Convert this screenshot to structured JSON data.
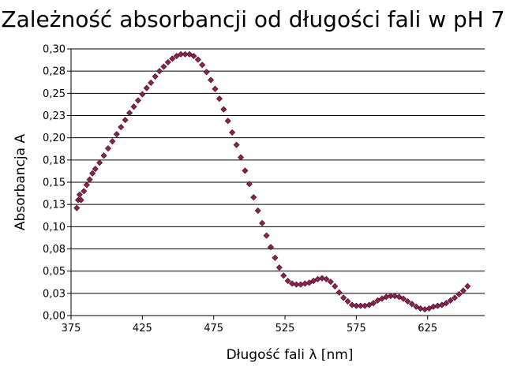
{
  "chart_data": {
    "type": "scatter",
    "title": "Zależność absorbancji od długości fali w pH 7",
    "xlabel": "Długość fali λ [nm]",
    "ylabel": "Absorbancja A",
    "xlim": [
      375,
      665
    ],
    "ylim": [
      0,
      0.3
    ],
    "x_ticks": [
      375,
      425,
      475,
      525,
      575,
      625
    ],
    "x_tick_labels": [
      "375",
      "425",
      "475",
      "525",
      "575",
      "625"
    ],
    "y_ticks": [
      0,
      0.025,
      0.05,
      0.075,
      0.1,
      0.125,
      0.15,
      0.175,
      0.2,
      0.225,
      0.25,
      0.275,
      0.3
    ],
    "y_tick_labels": [
      "0,00",
      "0,03",
      "0,05",
      "0,08",
      "0,10",
      "0,13",
      "0,15",
      "0,18",
      "0,20",
      "0,23",
      "0,25",
      "0,28",
      "0,30"
    ],
    "grid": "horizontal",
    "legend": "none",
    "marker": "diamond",
    "marker_color": "#8b2252",
    "marker_edge": "#3a0a1e",
    "series": [
      {
        "x": [
          379,
          380,
          381,
          382,
          384,
          386,
          388,
          390,
          392,
          395,
          398,
          401,
          404,
          407,
          410,
          413,
          416,
          419,
          422,
          425,
          428,
          431,
          434,
          437,
          440,
          443,
          446,
          449,
          452,
          455,
          458,
          461,
          464,
          467,
          470,
          473,
          476,
          479,
          482,
          485,
          488,
          491,
          494,
          497,
          500,
          503,
          506,
          509,
          512,
          515,
          518,
          521,
          524,
          527,
          530,
          533,
          536,
          539,
          542,
          545,
          548,
          551,
          554,
          557,
          560,
          563,
          566,
          569,
          572,
          575,
          578,
          581,
          584,
          587,
          590,
          593,
          596,
          599,
          602,
          605,
          608,
          611,
          614,
          617,
          620,
          623,
          626,
          629,
          632,
          635,
          638,
          641,
          644,
          647,
          650,
          653
        ],
        "y": [
          0.121,
          0.13,
          0.136,
          0.13,
          0.14,
          0.147,
          0.153,
          0.16,
          0.165,
          0.172,
          0.18,
          0.188,
          0.196,
          0.204,
          0.212,
          0.22,
          0.228,
          0.235,
          0.242,
          0.249,
          0.256,
          0.262,
          0.269,
          0.275,
          0.28,
          0.285,
          0.289,
          0.292,
          0.294,
          0.294,
          0.294,
          0.292,
          0.288,
          0.282,
          0.274,
          0.265,
          0.255,
          0.244,
          0.232,
          0.219,
          0.206,
          0.192,
          0.178,
          0.163,
          0.148,
          0.133,
          0.118,
          0.104,
          0.09,
          0.077,
          0.065,
          0.054,
          0.045,
          0.039,
          0.036,
          0.035,
          0.035,
          0.036,
          0.037,
          0.039,
          0.041,
          0.042,
          0.041,
          0.038,
          0.033,
          0.026,
          0.02,
          0.016,
          0.012,
          0.011,
          0.011,
          0.011,
          0.012,
          0.014,
          0.017,
          0.019,
          0.021,
          0.022,
          0.022,
          0.021,
          0.019,
          0.016,
          0.013,
          0.01,
          0.008,
          0.007,
          0.008,
          0.01,
          0.011,
          0.012,
          0.014,
          0.017,
          0.02,
          0.024,
          0.028,
          0.033
        ]
      }
    ]
  }
}
